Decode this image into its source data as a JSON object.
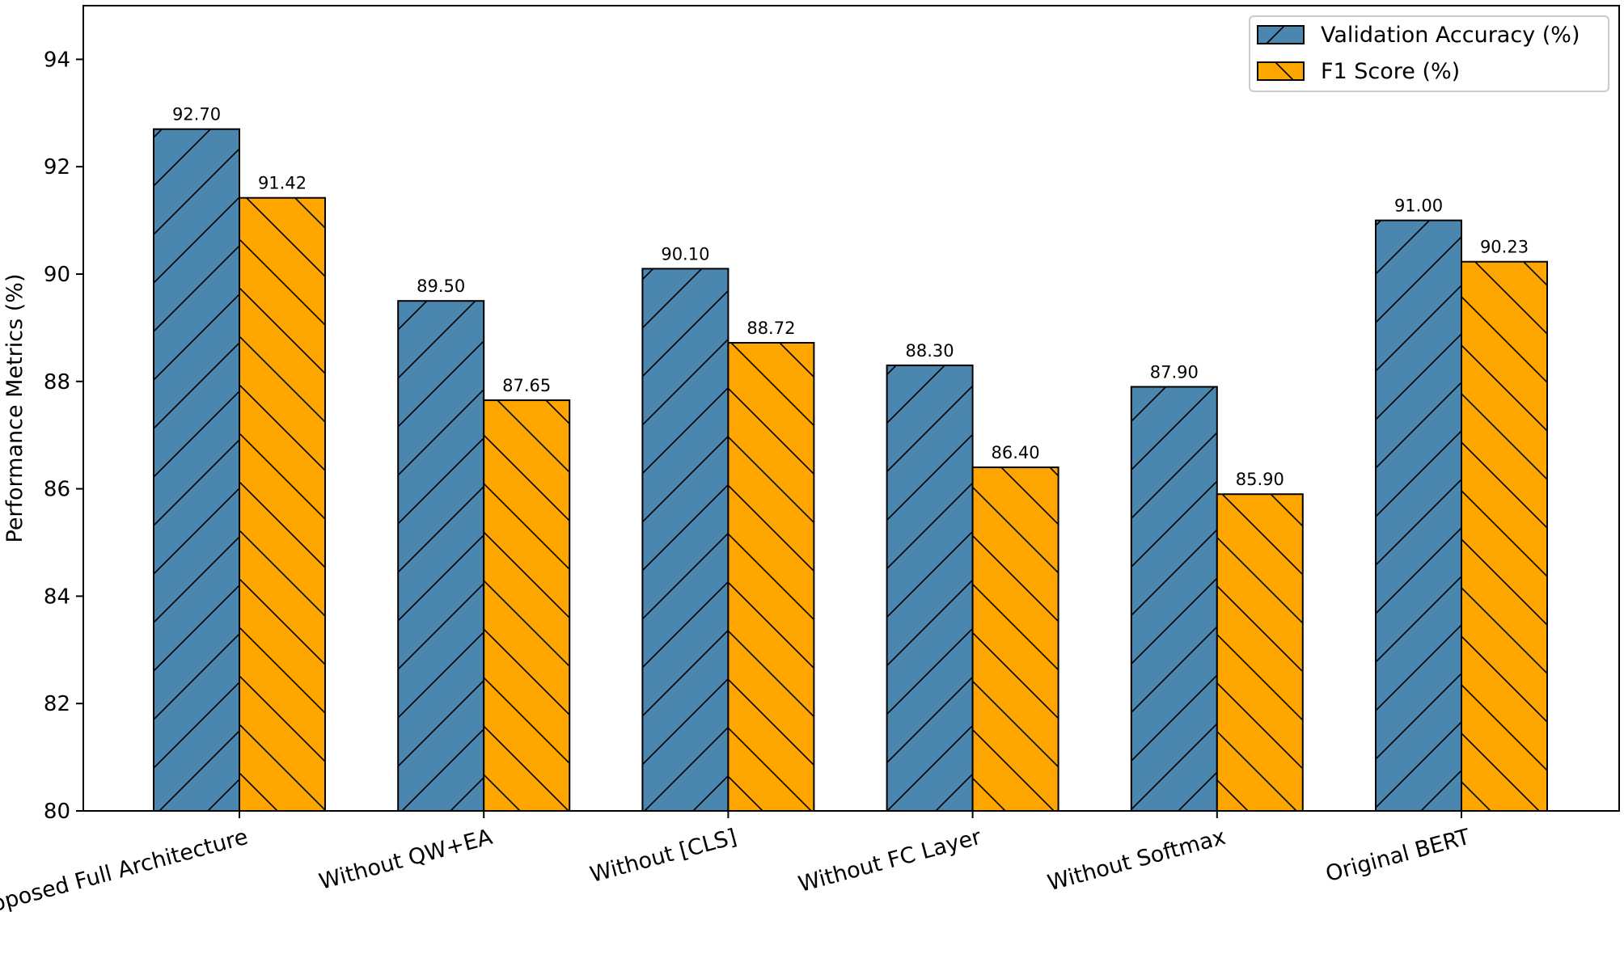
{
  "chart_data": {
    "type": "bar",
    "title": "",
    "xlabel": "",
    "ylabel": "Performance Metrics (%)",
    "ylim": [
      80,
      95
    ],
    "yticks": [
      80,
      82,
      84,
      86,
      88,
      90,
      92,
      94
    ],
    "grid": false,
    "legend_position": "top-right",
    "categories": [
      "Proposed Full Architecture",
      "Without QW+EA",
      "Without [CLS]",
      "Without FC Layer",
      "Without Softmax",
      "Original BERT"
    ],
    "series": [
      {
        "name": "Validation Accuracy (%)",
        "color": "#4a86ae",
        "hatch": "/",
        "values": [
          92.7,
          89.5,
          90.1,
          88.3,
          87.9,
          91.0
        ],
        "labels": [
          "92.70",
          "89.50",
          "90.10",
          "88.30",
          "87.90",
          "91.00"
        ]
      },
      {
        "name": "F1 Score (%)",
        "color": "#ffa500",
        "hatch": "\\",
        "values": [
          91.42,
          87.65,
          88.72,
          86.4,
          85.9,
          90.23
        ],
        "labels": [
          "91.42",
          "87.65",
          "88.72",
          "86.40",
          "85.90",
          "90.23"
        ]
      }
    ]
  }
}
